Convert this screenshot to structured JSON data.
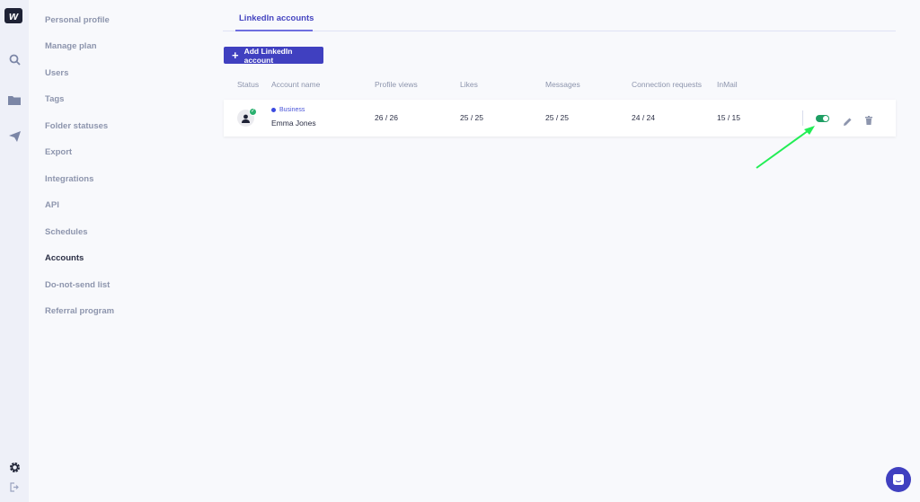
{
  "rail": {
    "icons": [
      "logo-icon",
      "search-icon",
      "folder-icon",
      "send-icon",
      "gear-icon",
      "logout-icon"
    ]
  },
  "menu": {
    "items": [
      {
        "label": "Personal profile"
      },
      {
        "label": "Manage plan"
      },
      {
        "label": "Users"
      },
      {
        "label": "Tags"
      },
      {
        "label": "Folder statuses"
      },
      {
        "label": "Export"
      },
      {
        "label": "Integrations"
      },
      {
        "label": "API"
      },
      {
        "label": "Schedules"
      },
      {
        "label": "Accounts",
        "active": true
      },
      {
        "label": "Do-not-send list"
      },
      {
        "label": "Referral program"
      }
    ]
  },
  "main": {
    "tab": "LinkedIn accounts",
    "add_button": "Add LinkedIn account",
    "columns": [
      "Status",
      "Account name",
      "Profile views",
      "Likes",
      "Messages",
      "Connection requests",
      "InMail"
    ],
    "rows": [
      {
        "type": "Business",
        "name": "Emma Jones",
        "profile_views": "26 / 26",
        "likes": "25 / 25",
        "messages": "25 / 25",
        "connection_requests": "24 / 24",
        "inmail": "15 / 15",
        "enabled": true
      }
    ]
  },
  "colors": {
    "accent": "#4040c0",
    "toggle_on": "#1e9e63",
    "annotation_arrow": "#22ee55"
  }
}
